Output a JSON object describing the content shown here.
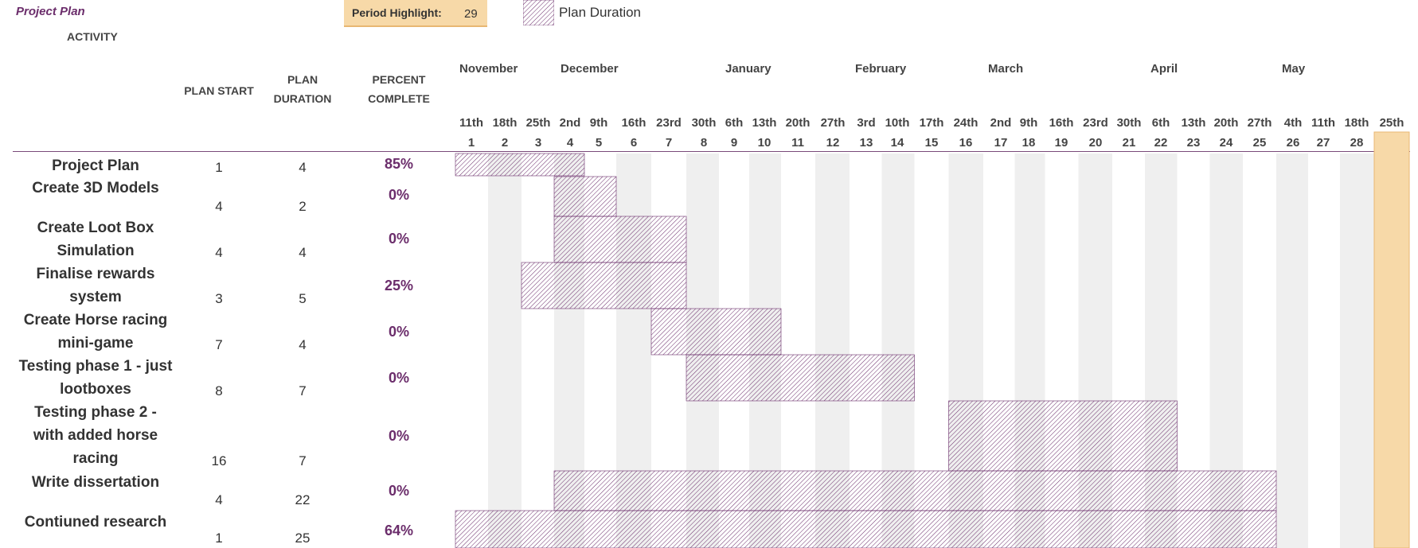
{
  "title": "Project Plan",
  "activity_header": "ACTIVITY",
  "period_highlight": {
    "label": "Period Highlight:",
    "value": "29"
  },
  "legend": {
    "label": "Plan Duration"
  },
  "headers": {
    "plan_start": "PLAN START",
    "plan_duration_1": "PLAN",
    "plan_duration_2": "DURATION",
    "percent_1": "PERCENT",
    "percent_2": "COMPLETE"
  },
  "colors": {
    "accent": "#6b2d6b",
    "highlight": "#f7d9a8",
    "shade": "#efefef",
    "bar_hatch": "#6b2d6b"
  },
  "chart_data": {
    "type": "gantt",
    "title": "Project Plan",
    "highlight_period": 29,
    "months": [
      "November",
      "December",
      "January",
      "February",
      "March",
      "April",
      "May"
    ],
    "weeks": [
      "11th",
      "18th",
      "25th",
      "2nd",
      "9th",
      "16th",
      "23rd",
      "30th",
      "6th",
      "13th",
      "20th",
      "27th",
      "3rd",
      "10th",
      "17th",
      "24th",
      "2nd",
      "9th",
      "16th",
      "23rd",
      "30th",
      "6th",
      "13th",
      "20th",
      "27th",
      "4th",
      "11th",
      "18th",
      "25th"
    ],
    "periods": [
      1,
      2,
      3,
      4,
      5,
      6,
      7,
      8,
      9,
      10,
      11,
      12,
      13,
      14,
      15,
      16,
      17,
      18,
      19,
      20,
      21,
      22,
      23,
      24,
      25,
      26,
      27,
      28,
      29
    ],
    "tasks": [
      {
        "name_lines": [
          "Project Plan"
        ],
        "plan_start": 1,
        "plan_duration": 4,
        "percent_complete": "85%"
      },
      {
        "name_lines": [
          "Create 3D Models"
        ],
        "plan_start": 4,
        "plan_duration": 2,
        "percent_complete": "0%"
      },
      {
        "name_lines": [
          "Create Loot Box",
          "Simulation"
        ],
        "plan_start": 4,
        "plan_duration": 4,
        "percent_complete": "0%"
      },
      {
        "name_lines": [
          "Finalise rewards",
          "system"
        ],
        "plan_start": 3,
        "plan_duration": 5,
        "percent_complete": "25%"
      },
      {
        "name_lines": [
          "Create Horse racing",
          "mini-game"
        ],
        "plan_start": 7,
        "plan_duration": 4,
        "percent_complete": "0%"
      },
      {
        "name_lines": [
          "Testing phase 1 - just",
          "lootboxes"
        ],
        "plan_start": 8,
        "plan_duration": 7,
        "percent_complete": "0%"
      },
      {
        "name_lines": [
          "Testing phase 2 -",
          "with added horse",
          "racing"
        ],
        "plan_start": 16,
        "plan_duration": 7,
        "percent_complete": "0%"
      },
      {
        "name_lines": [
          "Write dissertation"
        ],
        "plan_start": 4,
        "plan_duration": 22,
        "percent_complete": "0%"
      },
      {
        "name_lines": [
          "Contiuned research"
        ],
        "plan_start": 1,
        "plan_duration": 25,
        "percent_complete": "64%"
      }
    ]
  }
}
